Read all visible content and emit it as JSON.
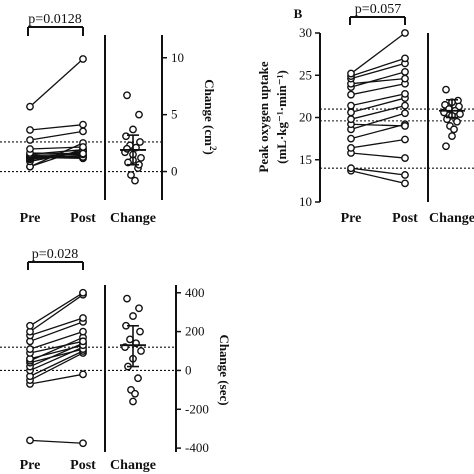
{
  "chart_data": [
    {
      "type": "scatter",
      "panel_letter": "",
      "x_categories": [
        "Pre",
        "Post",
        "Change"
      ],
      "p_value_label": "p=0.0128",
      "left_ylabel": "",
      "right_ylabel_main": "Change (cm",
      "right_ylabel_sup": "2",
      "right_ylabel_tail": ")",
      "left_ylim": [
        -11.5,
        38
      ],
      "right_ylim": [
        -2.5,
        12
      ],
      "left_ticks": [],
      "right_ticks": [
        0,
        5,
        10
      ],
      "pairs": [
        [
          -1.5,
          5.6
        ],
        [
          -1.5,
          3.8
        ],
        [
          0.2,
          3.2
        ],
        [
          0.1,
          3.0
        ],
        [
          0.7,
          3.1
        ],
        [
          0.9,
          1.9
        ],
        [
          1.1,
          1.5
        ],
        [
          1.3,
          1.0
        ],
        [
          1.5,
          1.2
        ],
        [
          1.7,
          1.4
        ],
        [
          1.9,
          2.2
        ],
        [
          2.2,
          3.6
        ],
        [
          2.6,
          2.4
        ],
        [
          3.8,
          4.4
        ],
        [
          6.5,
          9.1
        ],
        [
          9.5,
          11.1
        ],
        [
          16.5,
          30.8
        ]
      ],
      "change_values": [
        6.7,
        5.0,
        3.7,
        3.1,
        2.6,
        2.3,
        2.1,
        1.7,
        1.2,
        1.0,
        0.8,
        0.3,
        -0.3,
        -0.8,
        1.5,
        2.0,
        0.6
      ],
      "change_mean": 1.9,
      "change_ci": [
        0.6,
        3.2
      ],
      "dotted_lines_change_units": [
        2.6,
        0
      ]
    },
    {
      "type": "scatter",
      "panel_letter": "B",
      "x_categories": [
        "Pre",
        "Post",
        "Change"
      ],
      "p_value_label": "p=0.057",
      "left_ylabel_line1": "Peak oxygen uptake",
      "left_ylabel_line2": "(mL·kg⁻¹·min⁻¹)",
      "left_ylim": [
        10,
        30
      ],
      "left_ticks": [
        10,
        15,
        20,
        25,
        30
      ],
      "pairs": [
        [
          13.7,
          12.2
        ],
        [
          14.0,
          13.2
        ],
        [
          15.8,
          15.2
        ],
        [
          16.4,
          17.4
        ],
        [
          17.5,
          19.2
        ],
        [
          18.6,
          20.5
        ],
        [
          19.2,
          19.0
        ],
        [
          19.8,
          21.4
        ],
        [
          20.6,
          22.3
        ],
        [
          21.4,
          22.8
        ],
        [
          22.7,
          24.0
        ],
        [
          23.6,
          25.4
        ],
        [
          24.0,
          24.6
        ],
        [
          24.6,
          26.4
        ],
        [
          24.9,
          27.0
        ],
        [
          25.2,
          30.0
        ]
      ],
      "change_ylim_left_units": [
        14.0,
        25.0
      ],
      "change_values_left_units": [
        23.3,
        22.0,
        21.8,
        21.5,
        21.3,
        21.0,
        20.8,
        20.6,
        20.4,
        20.2,
        19.8,
        19.5,
        19.0,
        18.6,
        17.8,
        16.6
      ],
      "change_mean_left_units": 20.8,
      "change_ci_left_units": [
        20.0,
        22.1
      ],
      "dotted_lines_left_units": [
        21.0,
        19.6,
        14.0
      ]
    },
    {
      "type": "scatter",
      "panel_letter": "",
      "x_categories": [
        "Pre",
        "Post",
        "Change"
      ],
      "p_value_label": "p=0.028",
      "right_ylabel": "Change (sec)",
      "right_ylim": [
        -420,
        440
      ],
      "right_ticks": [
        -400,
        -200,
        0,
        200,
        400
      ],
      "pairs_change_units": [
        [
          -360,
          -375
        ],
        [
          -70,
          -20
        ],
        [
          -50,
          90
        ],
        [
          -30,
          100
        ],
        [
          0,
          120
        ],
        [
          20,
          140
        ],
        [
          40,
          110
        ],
        [
          50,
          170
        ],
        [
          60,
          130
        ],
        [
          90,
          150
        ],
        [
          110,
          200
        ],
        [
          150,
          250
        ],
        [
          180,
          270
        ],
        [
          200,
          390
        ],
        [
          230,
          400
        ]
      ],
      "change_values": [
        370,
        320,
        280,
        230,
        200,
        160,
        140,
        120,
        100,
        60,
        20,
        -40,
        -100,
        -120,
        -160
      ],
      "change_mean": 130,
      "change_ci": [
        20,
        230
      ],
      "dotted_lines_change_units": [
        120,
        0
      ]
    }
  ]
}
